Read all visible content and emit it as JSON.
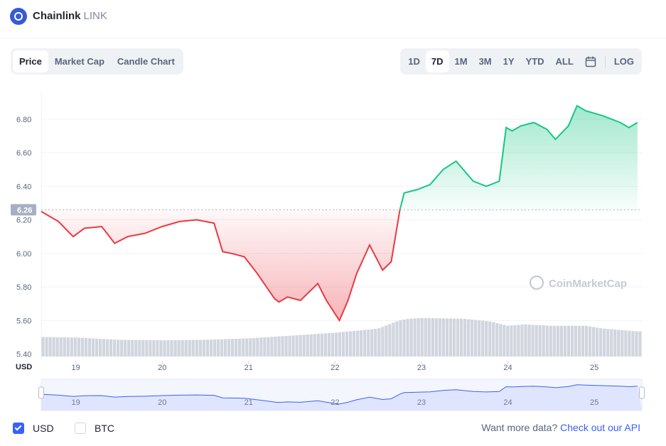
{
  "header": {
    "name": "Chainlink",
    "symbol": "LINK"
  },
  "tabs": [
    {
      "label": "Price",
      "active": true
    },
    {
      "label": "Market Cap",
      "active": false
    },
    {
      "label": "Candle Chart",
      "active": false
    }
  ],
  "ranges": [
    {
      "label": "1D",
      "active": false
    },
    {
      "label": "7D",
      "active": true
    },
    {
      "label": "1M",
      "active": false
    },
    {
      "label": "3M",
      "active": false
    },
    {
      "label": "1Y",
      "active": false
    },
    {
      "label": "YTD",
      "active": false
    },
    {
      "label": "ALL",
      "active": false
    }
  ],
  "log_label": "LOG",
  "watermark": "CoinMarketCap",
  "currency_axis_label": "USD",
  "footer": {
    "usd_label": "USD",
    "btc_label": "BTC",
    "more_text": "Want more data?",
    "api_link": "Check out our API"
  },
  "colors": {
    "up": "#16c784",
    "down": "#ea3943",
    "volume": "#d1d5de",
    "navigator_line": "#3861fb",
    "navigator_fill": "#dfe5ff",
    "accent": "#3861fb"
  },
  "chart_data": {
    "type": "area",
    "title": "Chainlink LINK Price (7D)",
    "ylabel": "USD",
    "reference_price": 6.26,
    "reference_label": "6.26",
    "ylim": [
      5.36,
      6.96
    ],
    "yticks": [
      5.4,
      5.6,
      5.8,
      6.0,
      6.2,
      6.4,
      6.6,
      6.8
    ],
    "ytick_labels": [
      "5.40",
      "5.60",
      "5.80",
      "6.00",
      "6.20",
      "6.40",
      "6.60",
      "6.80"
    ],
    "xlim": [
      18.6,
      25.55
    ],
    "xticks": [
      19,
      20,
      21,
      22,
      23,
      24,
      25
    ],
    "xtick_labels": [
      "19",
      "20",
      "21",
      "22",
      "23",
      "24",
      "25"
    ],
    "series": [
      {
        "name": "Price",
        "x": [
          18.6,
          18.8,
          18.97,
          19.1,
          19.3,
          19.45,
          19.6,
          19.8,
          20.0,
          20.2,
          20.4,
          20.6,
          20.7,
          20.8,
          20.95,
          21.1,
          21.3,
          21.35,
          21.45,
          21.6,
          21.8,
          21.9,
          22.05,
          22.15,
          22.25,
          22.4,
          22.55,
          22.65,
          22.75,
          22.8,
          22.95,
          23.1,
          23.25,
          23.4,
          23.6,
          23.75,
          23.9,
          23.98,
          24.05,
          24.15,
          24.3,
          24.45,
          24.55,
          24.7,
          24.8,
          24.9,
          25.1,
          25.3,
          25.4,
          25.5
        ],
        "y": [
          6.25,
          6.19,
          6.1,
          6.15,
          6.16,
          6.06,
          6.1,
          6.12,
          6.16,
          6.19,
          6.2,
          6.18,
          6.01,
          6.0,
          5.98,
          5.88,
          5.73,
          5.71,
          5.74,
          5.72,
          5.82,
          5.72,
          5.6,
          5.72,
          5.88,
          6.05,
          5.9,
          5.95,
          6.26,
          6.36,
          6.38,
          6.41,
          6.5,
          6.55,
          6.43,
          6.4,
          6.43,
          6.75,
          6.73,
          6.76,
          6.78,
          6.74,
          6.68,
          6.76,
          6.88,
          6.85,
          6.82,
          6.78,
          6.75,
          6.78
        ]
      }
    ],
    "volume": {
      "x": [
        18.6,
        19.0,
        19.5,
        20.0,
        20.5,
        21.0,
        21.5,
        22.0,
        22.5,
        22.75,
        22.85,
        23.0,
        23.5,
        23.8,
        24.0,
        24.2,
        24.5,
        24.9,
        25.1,
        25.5
      ],
      "values": [
        0.7,
        0.68,
        0.6,
        0.58,
        0.6,
        0.65,
        0.75,
        0.85,
        1.0,
        1.3,
        1.35,
        1.38,
        1.35,
        1.25,
        1.1,
        1.15,
        1.1,
        1.1,
        1.0,
        0.9
      ]
    },
    "navigator": {
      "xtick_labels": [
        "19",
        "20",
        "21",
        "22",
        "23",
        "24",
        "25"
      ]
    }
  }
}
